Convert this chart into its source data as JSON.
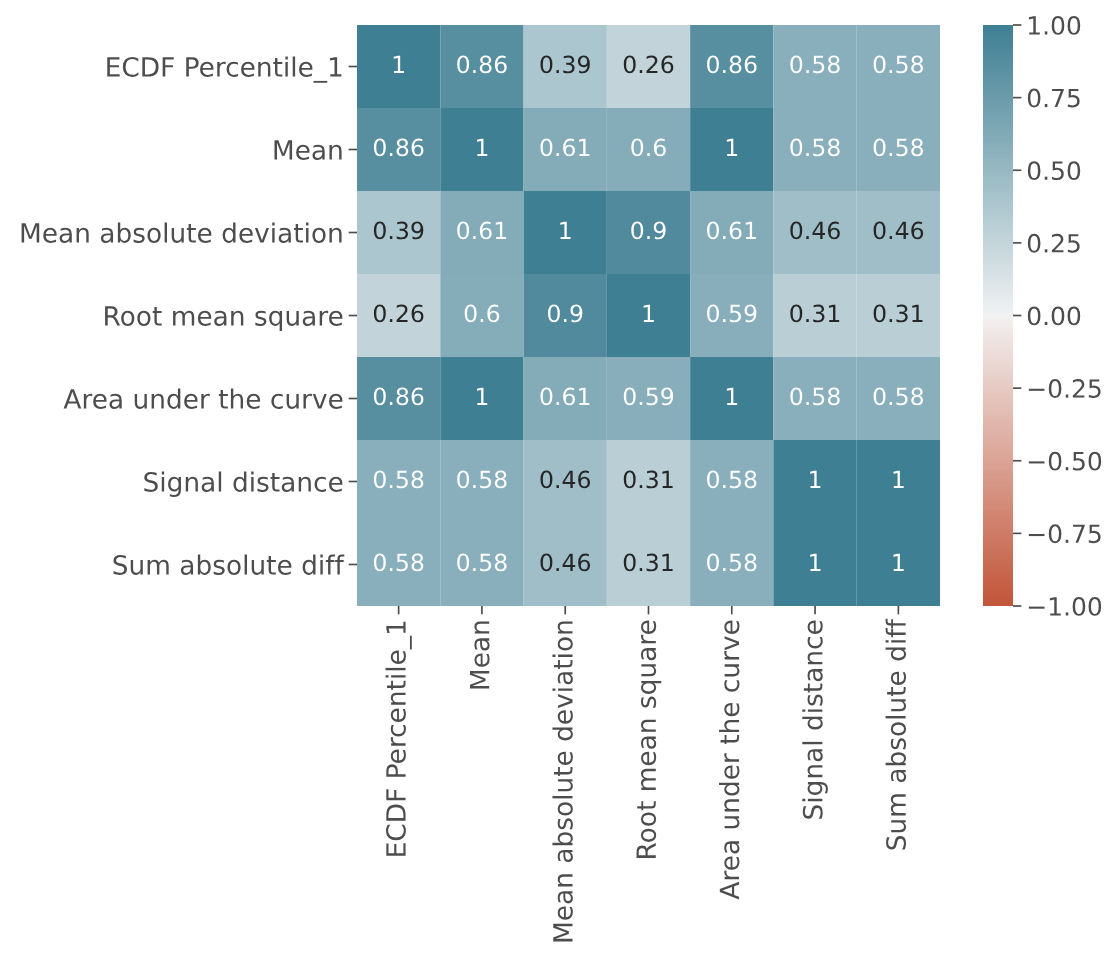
{
  "chart_data": {
    "type": "heatmap",
    "categories": [
      "ECDF Percentile_1",
      "Mean",
      "Mean absolute deviation",
      "Root mean square",
      "Area under the curve",
      "Signal distance",
      "Sum absolute diff"
    ],
    "y_categories": [
      "ECDF Percentile_1",
      "Mean",
      "Mean absolute deviation",
      "Root mean square",
      "Area under the curve",
      "Signal distance",
      "Sum absolute diff"
    ],
    "cells": [
      [
        1,
        0.86,
        0.39,
        0.26,
        0.86,
        0.58,
        0.58
      ],
      [
        0.86,
        1,
        0.61,
        0.6,
        1,
        0.58,
        0.58
      ],
      [
        0.39,
        0.61,
        1,
        0.9,
        0.61,
        0.46,
        0.46
      ],
      [
        0.26,
        0.6,
        0.9,
        1,
        0.59,
        0.31,
        0.31
      ],
      [
        0.86,
        1,
        0.61,
        0.59,
        1,
        0.58,
        0.58
      ],
      [
        0.58,
        0.58,
        0.46,
        0.31,
        0.58,
        1,
        1
      ],
      [
        0.58,
        0.58,
        0.46,
        0.31,
        0.58,
        1,
        1
      ]
    ],
    "clim": [
      -1,
      1
    ],
    "cticks": [
      {
        "value": -1,
        "label": "−1.00"
      },
      {
        "value": -0.75,
        "label": "−0.75"
      },
      {
        "value": -0.5,
        "label": "−0.50"
      },
      {
        "value": -0.25,
        "label": "−0.25"
      },
      {
        "value": 0,
        "label": "0.00"
      },
      {
        "value": 0.25,
        "label": "0.25"
      },
      {
        "value": 0.5,
        "label": "0.50"
      },
      {
        "value": 0.75,
        "label": "0.75"
      },
      {
        "value": 1,
        "label": "1.00"
      }
    ],
    "data_labels": true
  }
}
